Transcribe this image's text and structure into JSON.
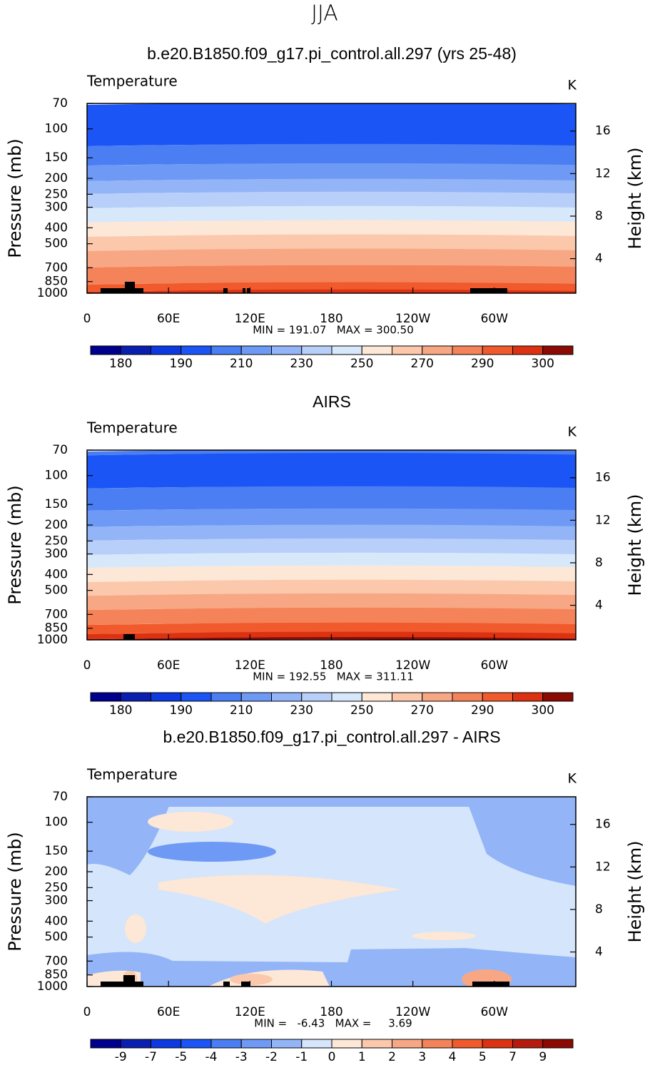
{
  "title": "JJA",
  "chart_data": [
    {
      "type": "contour",
      "title": "b.e20.B1850.f09_g17.pi_control.all.297 (yrs 25-48)",
      "subtitle": "Temperature",
      "units": "K",
      "ylabel": "Pressure (mb)",
      "y2label": "Height (km)",
      "ylog": true,
      "ylim": [
        1000,
        70
      ],
      "yticks": [
        70,
        100,
        150,
        200,
        250,
        300,
        400,
        500,
        700,
        850,
        1000
      ],
      "y2lim": [
        0.75,
        18.6
      ],
      "y2ticks": [
        4,
        8,
        12,
        16
      ],
      "xlim": [
        0,
        360
      ],
      "xticks": [
        0,
        {
          "value": 60,
          "label": "60E"
        },
        {
          "value": 120,
          "label": "120E"
        },
        180,
        {
          "value": 240,
          "label": "120W"
        },
        {
          "value": 300,
          "label": "60W"
        }
      ],
      "stats": "MIN = 191.07   MAX = 300.50",
      "colorbar": {
        "colors": [
          "#00008f",
          "#0a1fb0",
          "#0d3ae0",
          "#1b55f5",
          "#4a7ef2",
          "#6e9af5",
          "#93b5f7",
          "#b8d0f9",
          "#d8e8fb",
          "#fde7d6",
          "#fbc8ac",
          "#f8a784",
          "#f5835a",
          "#f05a2c",
          "#dc3212",
          "#8c0a04"
        ],
        "ticks": [
          180,
          190,
          210,
          230,
          250,
          270,
          290,
          300
        ]
      }
    },
    {
      "type": "contour",
      "title": "AIRS",
      "subtitle": "Temperature",
      "units": "K",
      "ylabel": "Pressure (mb)",
      "y2label": "Height (km)",
      "ylog": true,
      "ylim": [
        1000,
        70
      ],
      "yticks": [
        70,
        100,
        150,
        200,
        250,
        300,
        400,
        500,
        700,
        850,
        1000
      ],
      "y2lim": [
        0.75,
        18.6
      ],
      "y2ticks": [
        4,
        8,
        12,
        16
      ],
      "xlim": [
        0,
        360
      ],
      "xticks": [
        0,
        {
          "value": 60,
          "label": "60E"
        },
        {
          "value": 120,
          "label": "120E"
        },
        180,
        {
          "value": 240,
          "label": "120W"
        },
        {
          "value": 300,
          "label": "60W"
        }
      ],
      "stats": "MIN = 192.55   MAX = 311.11",
      "colorbar": {
        "colors": [
          "#00008f",
          "#0a1fb0",
          "#0d3ae0",
          "#1b55f5",
          "#4a7ef2",
          "#6e9af5",
          "#93b5f7",
          "#b8d0f9",
          "#d8e8fb",
          "#fde7d6",
          "#fbc8ac",
          "#f8a784",
          "#f5835a",
          "#f05a2c",
          "#dc3212",
          "#8c0a04"
        ],
        "ticks": [
          180,
          190,
          210,
          230,
          250,
          270,
          290,
          300
        ]
      }
    },
    {
      "type": "contour-diff",
      "title": "b.e20.B1850.f09_g17.pi_control.all.297 - AIRS",
      "subtitle": "Temperature",
      "units": "K",
      "ylabel": "Pressure (mb)",
      "y2label": "Height (km)",
      "ylog": true,
      "ylim": [
        1000,
        70
      ],
      "yticks": [
        70,
        100,
        150,
        200,
        250,
        300,
        400,
        500,
        700,
        850,
        1000
      ],
      "y2lim": [
        0.75,
        18.6
      ],
      "y2ticks": [
        4,
        8,
        12,
        16
      ],
      "xlim": [
        0,
        360
      ],
      "xticks": [
        0,
        {
          "value": 60,
          "label": "60E"
        },
        {
          "value": 120,
          "label": "120E"
        },
        180,
        {
          "value": 240,
          "label": "120W"
        },
        {
          "value": 300,
          "label": "60W"
        }
      ],
      "stats": "MIN =   -6.43   MAX =     3.69",
      "colorbar": {
        "colors": [
          "#00008f",
          "#0a1fb0",
          "#0d3ae0",
          "#1b55f5",
          "#4a7ef2",
          "#6e9af5",
          "#93b5f7",
          "#d5e5fb",
          "#fde7d6",
          "#fbc8ac",
          "#f8a784",
          "#f5835a",
          "#f05a2c",
          "#dc3212",
          "#b51b0d",
          "#8c0a04"
        ],
        "ticks": [
          -9,
          -7,
          -5,
          -4,
          -3,
          -2,
          -1,
          0,
          1,
          2,
          3,
          4,
          5,
          7,
          9
        ]
      }
    }
  ]
}
